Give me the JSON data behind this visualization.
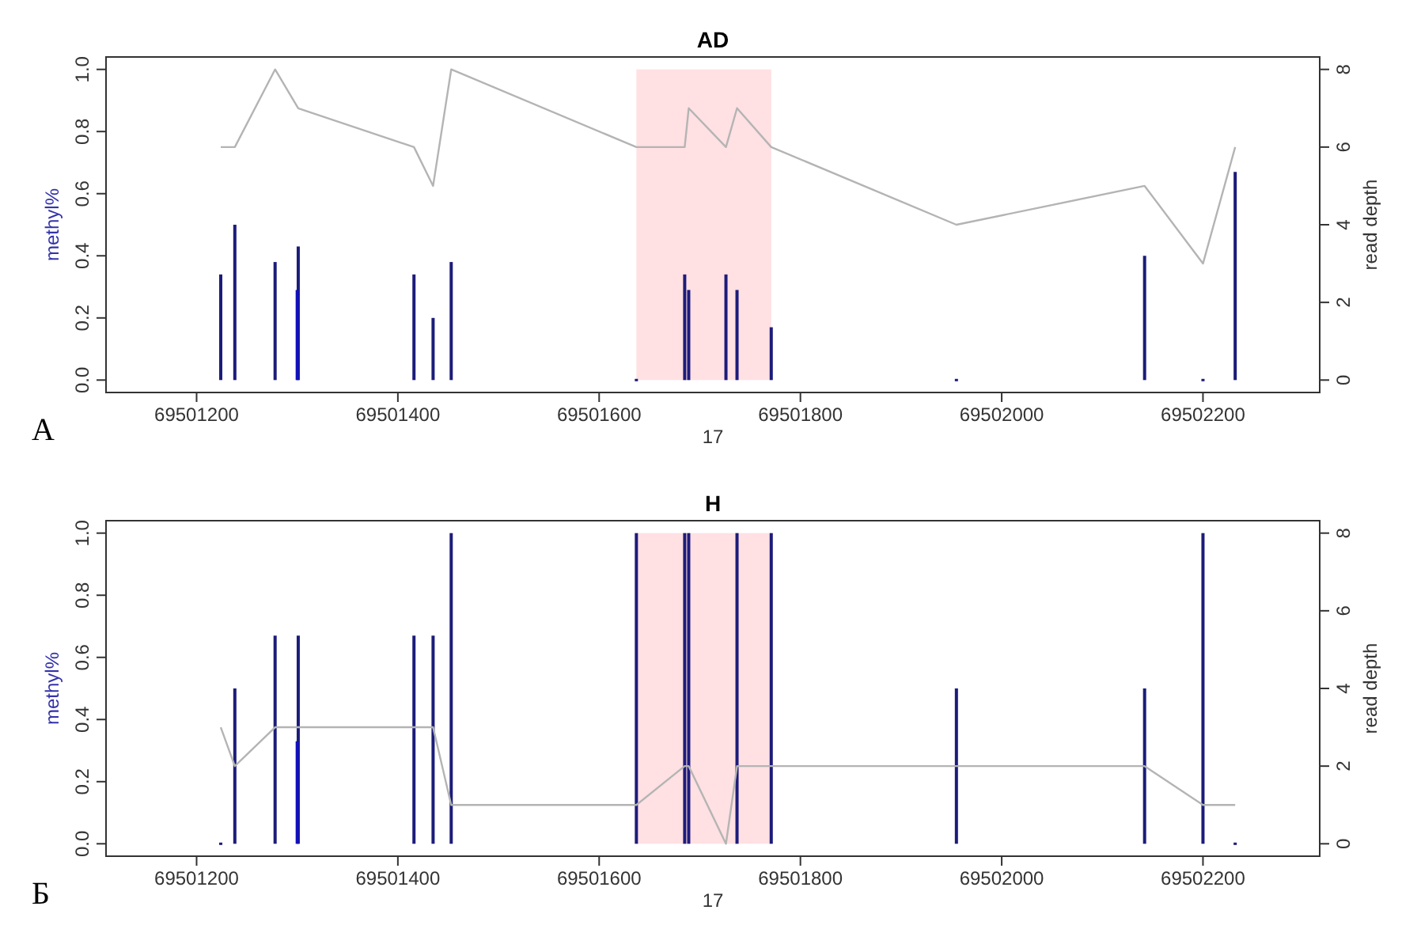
{
  "chart_data": [
    {
      "type": "bar",
      "title": "AD",
      "xlabel": "17",
      "ylabel": "methyl%",
      "y2label": "read depth",
      "xlim": [
        69501110,
        69502316
      ],
      "xticks": [
        69501200,
        69501400,
        69501600,
        69501800,
        69502000,
        69502200
      ],
      "ylim": [
        -0.04,
        1.04
      ],
      "yticks": [
        {
          "value": 0,
          "label": "0.0"
        },
        {
          "value": 0.2,
          "label": "0.2"
        },
        {
          "value": 0.4,
          "label": "0.4"
        },
        {
          "value": 0.6,
          "label": "0.6"
        },
        {
          "value": 0.8,
          "label": "0.8"
        },
        {
          "value": 1,
          "label": "1.0"
        }
      ],
      "y2lim": [
        -0.32,
        8.32
      ],
      "y2ticks": [
        0,
        2,
        4,
        6,
        8
      ],
      "grid": false,
      "series": [
        {
          "x": [
            69501224,
            69501238,
            69501278,
            69501300,
            69501301,
            69501416,
            69501435,
            69501453,
            69501637,
            69501685,
            69501689,
            69501726,
            69501737,
            69501771,
            69501955,
            69502142,
            69502200,
            69502232
          ],
          "values": [
            0.34,
            0.5,
            0.38,
            0.29,
            0.43,
            0.34,
            0.2,
            0.38,
            0,
            0.34,
            0.29,
            0.34,
            0.29,
            0.17,
            0,
            0.4,
            0,
            0.67
          ],
          "colors": [
            "#1c1c7a",
            "#1c1c7a",
            "#1c1c7a",
            "#1010c0",
            "#1c1c7a",
            "#1c1c7a",
            "#1c1c7a",
            "#1c1c7a",
            "#1c1c7a",
            "#1c1c7a",
            "#1c1c7a",
            "#1c1c7a",
            "#1c1c7a",
            "#1c1c7a",
            "#1c1c7a",
            "#1c1c7a",
            "#1c1c7a",
            "#1c1c7a"
          ]
        },
        {
          "type": "line",
          "axis": "y2",
          "color": "#b4b4b4",
          "x": [
            69501224,
            69501238,
            69501278,
            69501301,
            69501416,
            69501435,
            69501453,
            69501637,
            69501685,
            69501689,
            69501726,
            69501737,
            69501771,
            69501955,
            69502142,
            69502200,
            69502232
          ],
          "values": [
            6,
            6,
            8,
            7,
            6,
            5,
            8,
            6,
            6,
            7,
            6,
            7,
            6,
            4,
            5,
            3,
            6
          ]
        }
      ],
      "bands": [
        {
          "axis": "x",
          "from": 69501637,
          "to": 69501771,
          "color": "#ffe0e3"
        }
      ],
      "annotations": [
        "А"
      ]
    },
    {
      "type": "bar",
      "title": "H",
      "xlabel": "17",
      "ylabel": "methyl%",
      "y2label": "read depth",
      "xlim": [
        69501110,
        69502316
      ],
      "xticks": [
        69501200,
        69501400,
        69501600,
        69501800,
        69502000,
        69502200
      ],
      "ylim": [
        -0.04,
        1.04
      ],
      "yticks": [
        {
          "value": 0,
          "label": "0.0"
        },
        {
          "value": 0.2,
          "label": "0.2"
        },
        {
          "value": 0.4,
          "label": "0.4"
        },
        {
          "value": 0.6,
          "label": "0.6"
        },
        {
          "value": 0.8,
          "label": "0.8"
        },
        {
          "value": 1,
          "label": "1.0"
        }
      ],
      "y2lim": [
        -0.32,
        8.32
      ],
      "y2ticks": [
        0,
        2,
        4,
        6,
        8
      ],
      "grid": false,
      "series": [
        {
          "x": [
            69501224,
            69501238,
            69501278,
            69501300,
            69501301,
            69501416,
            69501435,
            69501453,
            69501637,
            69501685,
            69501689,
            69501737,
            69501771,
            69501955,
            69502142,
            69502200,
            69502232
          ],
          "values": [
            0,
            0.5,
            0.67,
            0.33,
            0.67,
            0.67,
            0.67,
            1,
            1,
            1,
            1,
            1,
            1,
            0.5,
            0.5,
            1,
            0
          ],
          "colors": [
            "#1c1c7a",
            "#1c1c7a",
            "#1c1c7a",
            "#1010c0",
            "#1c1c7a",
            "#1c1c7a",
            "#1c1c7a",
            "#1c1c7a",
            "#1c1c7a",
            "#1c1c7a",
            "#1c1c7a",
            "#1c1c7a",
            "#1c1c7a",
            "#1c1c7a",
            "#1c1c7a",
            "#1c1c7a",
            "#1c1c7a"
          ]
        },
        {
          "type": "line",
          "axis": "y2",
          "color": "#b4b4b4",
          "x": [
            69501224,
            69501238,
            69501278,
            69501301,
            69501416,
            69501435,
            69501453,
            69501637,
            69501685,
            69501689,
            69501726,
            69501737,
            69501771,
            69501955,
            69502142,
            69502200,
            69502232
          ],
          "values": [
            3,
            2,
            3,
            3,
            3,
            3,
            1,
            1,
            2,
            2,
            0,
            2,
            2,
            2,
            2,
            1,
            1
          ]
        }
      ],
      "bands": [
        {
          "axis": "x",
          "from": 69501637,
          "to": 69501771,
          "color": "#ffe0e3"
        }
      ],
      "annotations": [
        "Б"
      ]
    }
  ]
}
